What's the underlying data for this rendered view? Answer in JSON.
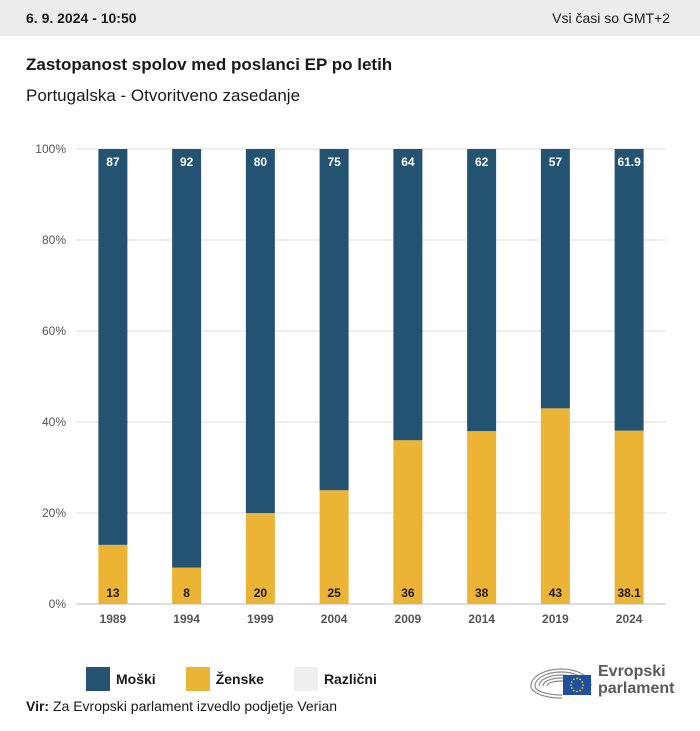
{
  "header": {
    "date": "6. 9. 2024 - 10:50",
    "timezone": "Vsi časi so GMT+2"
  },
  "title": "Zastopanost spolov med poslanci EP po letih",
  "subtitle": "Portugalska - Otvoritveno zasedanje",
  "colors": {
    "male": "#245372",
    "female": "#EBB434",
    "other": "#EFEFF1",
    "grid": "#dddddd",
    "axis": "#bbbbbb"
  },
  "chart_data": {
    "type": "bar",
    "stacked": true,
    "categories": [
      "1989",
      "1994",
      "1999",
      "2004",
      "2009",
      "2014",
      "2019",
      "2024"
    ],
    "series": [
      {
        "name": "Moški",
        "values": [
          87,
          92,
          80,
          75,
          64,
          62,
          57,
          61.9
        ],
        "labels": [
          "87",
          "92",
          "80",
          "75",
          "64",
          "62",
          "57",
          "61.9"
        ]
      },
      {
        "name": "Ženske",
        "values": [
          13,
          8,
          20,
          25,
          36,
          38,
          43,
          38.1
        ],
        "labels": [
          "13",
          "8",
          "20",
          "25",
          "36",
          "38",
          "43",
          "38.1"
        ]
      },
      {
        "name": "Različni",
        "values": [
          0,
          0,
          0,
          0,
          0,
          0,
          0,
          0
        ]
      }
    ],
    "yticks": [
      "0%",
      "20%",
      "40%",
      "60%",
      "80%",
      "100%"
    ],
    "ylim": [
      0,
      100
    ],
    "grid": true,
    "legend_position": "bottom-left"
  },
  "legend": [
    {
      "label": "Moški",
      "color": "#245372"
    },
    {
      "label": "Ženske",
      "color": "#EBB434"
    },
    {
      "label": "Različni",
      "color": "#EFEFF1"
    }
  ],
  "source": {
    "label": "Vir:",
    "text": "Za Evropski parlament izvedlo podjetje Verian"
  },
  "logo": {
    "line1": "Evropski",
    "line2": "parlament",
    "icon": "european-parliament-hemicycle-icon"
  }
}
